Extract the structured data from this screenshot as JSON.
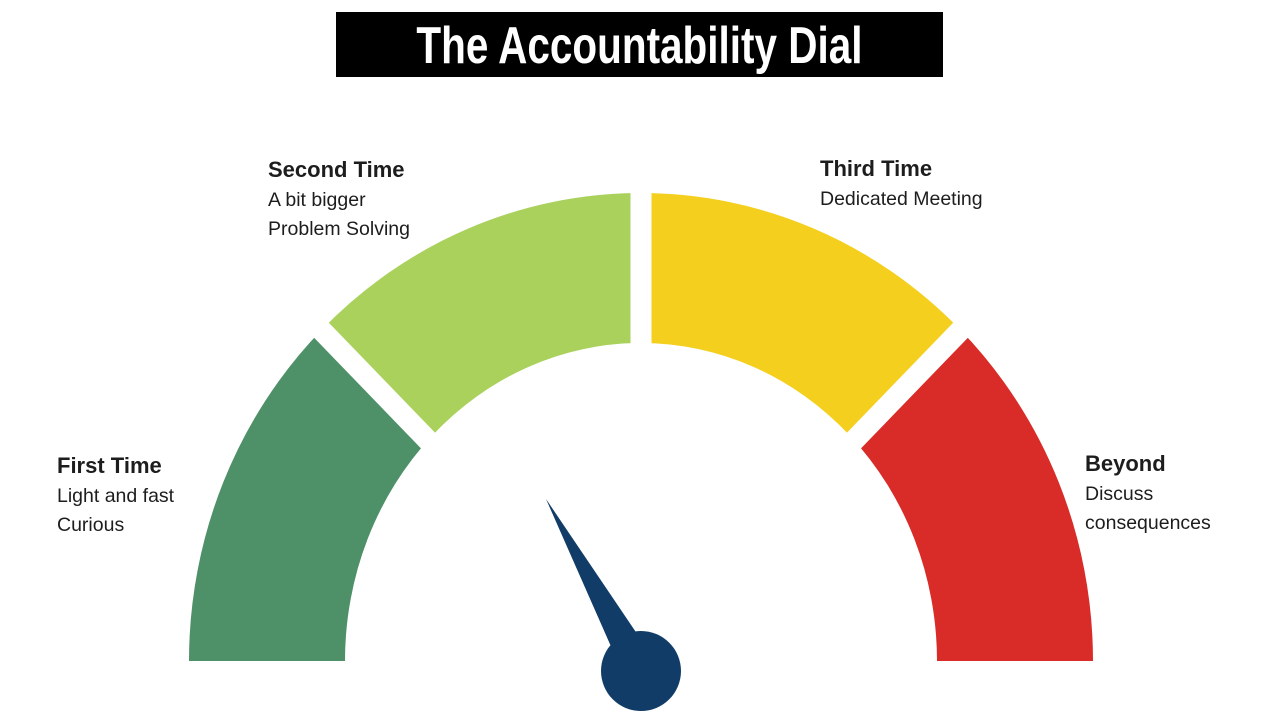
{
  "page": {
    "background": "#ffffff"
  },
  "title": {
    "text": "The Accountability Dial",
    "background": "#000000",
    "color": "#ffffff"
  },
  "dial": {
    "gap_color": "#ffffff",
    "segments": [
      {
        "name": "first-time",
        "heading": "First Time",
        "lines": [
          "Light and fast",
          "Curious"
        ],
        "color": "#4E9067",
        "start_deg": 180,
        "end_deg": 135
      },
      {
        "name": "second-time",
        "heading": "Second Time",
        "lines": [
          "A bit bigger",
          "Problem Solving"
        ],
        "color": "#A9D15C",
        "start_deg": 135,
        "end_deg": 90
      },
      {
        "name": "third-time",
        "heading": "Third Time",
        "lines": [
          "Dedicated Meeting"
        ],
        "color": "#F5CF1D",
        "start_deg": 90,
        "end_deg": 45
      },
      {
        "name": "beyond",
        "heading": "Beyond",
        "lines": [
          "Discuss",
          "consequences"
        ],
        "color": "#D92B27",
        "start_deg": 45,
        "end_deg": 0
      }
    ],
    "needle": {
      "color": "#103C67"
    }
  }
}
